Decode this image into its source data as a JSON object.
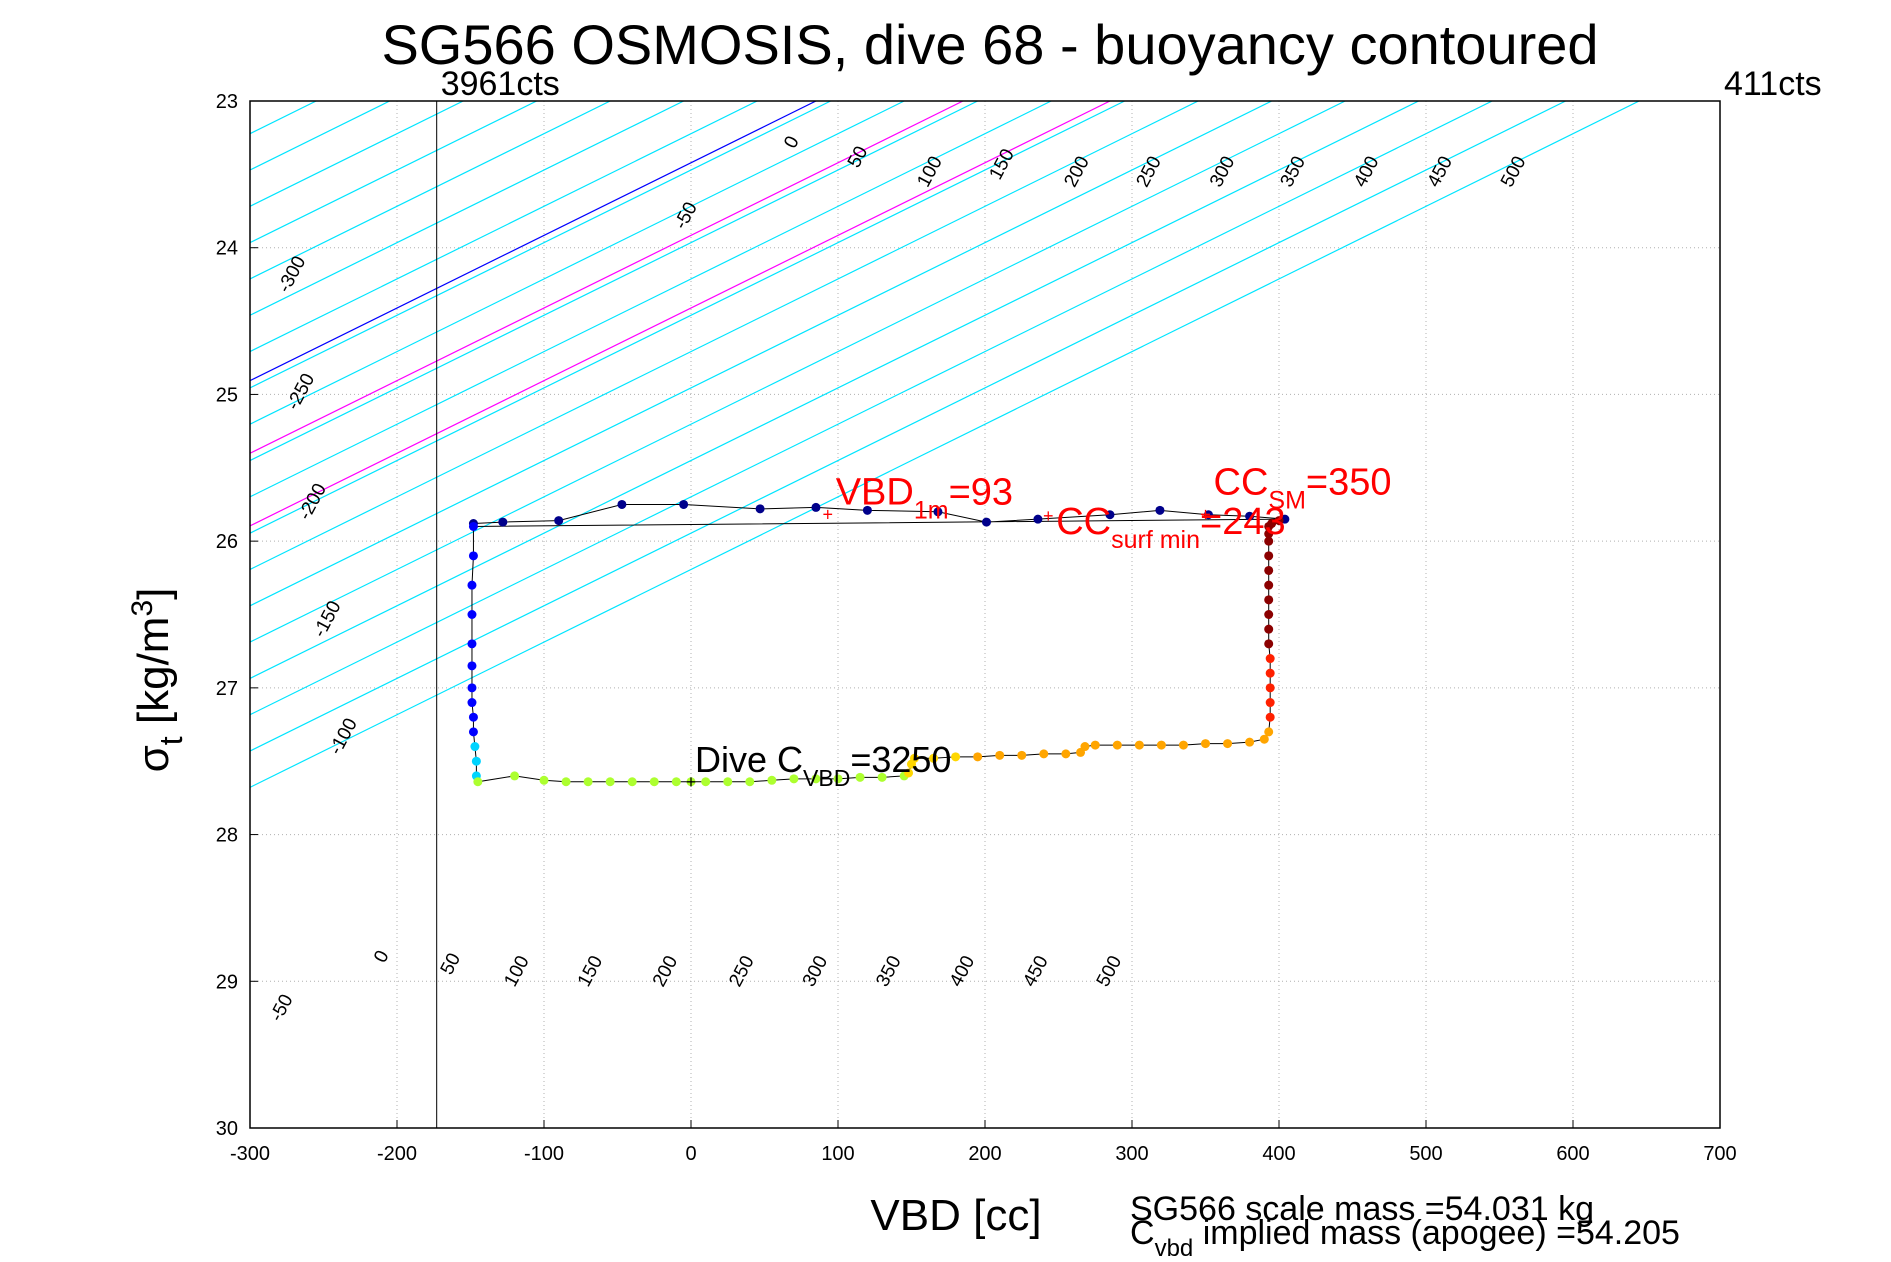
{
  "chart_data": {
    "type": "scatter",
    "title": "SG566 OSMOSIS, dive 68 - buoyancy contoured",
    "xlabel": "VBD [cc]",
    "ylabel_main": "σ",
    "ylabel_sub": "t",
    "ylabel_unit": "[kg/m",
    "ylabel_sup": "3",
    "ylabel_close": "]",
    "xlim": [
      -300,
      700
    ],
    "ylim": [
      23,
      30
    ],
    "y_reversed": true,
    "grid": true,
    "x_ticks": [
      "-300",
      "-200",
      "-100",
      "0",
      "100",
      "200",
      "300",
      "400",
      "500",
      "600",
      "700"
    ],
    "y_ticks": [
      "23",
      "24",
      "25",
      "26",
      "27",
      "28",
      "29",
      "30"
    ],
    "vlines": [
      {
        "x": -173,
        "label": "3961cts"
      },
      {
        "x": 700,
        "label": "411cts"
      }
    ],
    "contours": {
      "slope_cc_per_sigma": -202,
      "cyan_top": [
        {
          "value": -300,
          "x_at_23": -455,
          "label": "-300"
        },
        {
          "value": -250,
          "x_at_23": -405,
          "label": "-250"
        },
        {
          "value": -200,
          "x_at_23": -355,
          "label": "-200"
        },
        {
          "value": -150,
          "x_at_23": -305,
          "label": "-150"
        },
        {
          "value": -100,
          "x_at_23": -255,
          "label": "-100"
        },
        {
          "value": -50,
          "x_at_23": -205,
          "label": "-50"
        },
        {
          "value": 50,
          "x_at_23": -105,
          "label": "50"
        },
        {
          "value": 100,
          "x_at_23": -55,
          "label": "100"
        },
        {
          "value": 150,
          "x_at_23": -5,
          "label": "150"
        },
        {
          "value": 200,
          "x_at_23": 45,
          "label": "200"
        },
        {
          "value": 250,
          "x_at_23": 95,
          "label": "250"
        },
        {
          "value": 300,
          "x_at_23": 145,
          "label": "300"
        },
        {
          "value": 350,
          "x_at_23": 195,
          "label": "350"
        },
        {
          "value": 400,
          "x_at_23": 245,
          "label": "400"
        },
        {
          "value": 450,
          "x_at_23": 295,
          "label": "450"
        },
        {
          "value": 500,
          "x_at_23": 345,
          "label": "500"
        }
      ],
      "cyan_upper": [
        {
          "x_at_23": 395
        },
        {
          "x_at_23": 445
        },
        {
          "x_at_23": 495
        },
        {
          "x_at_23": 545
        },
        {
          "x_at_23": 595
        },
        {
          "x_at_23": 645
        }
      ],
      "blue_zero": {
        "x_at_23": 85,
        "label_top": "0",
        "label_bottom": "0",
        "label_minus50": "-50"
      },
      "magenta": [
        {
          "x_at_23": 185,
          "label_top": "100"
        },
        {
          "x_at_23": 285,
          "label_top": "200"
        }
      ],
      "top_labels": [
        {
          "text": "0",
          "x": 72,
          "y": 23.3
        },
        {
          "text": "50",
          "x": 117,
          "y": 23.4
        },
        {
          "text": "100",
          "x": 166,
          "y": 23.5
        },
        {
          "text": "150",
          "x": 215,
          "y": 23.45
        },
        {
          "text": "200",
          "x": 266,
          "y": 23.5
        },
        {
          "text": "250",
          "x": 315,
          "y": 23.5
        },
        {
          "text": "300",
          "x": 365,
          "y": 23.5
        },
        {
          "text": "350",
          "x": 413,
          "y": 23.5
        },
        {
          "text": "400",
          "x": 463,
          "y": 23.5
        },
        {
          "text": "450",
          "x": 513,
          "y": 23.5
        },
        {
          "text": "500",
          "x": 563,
          "y": 23.5
        },
        {
          "text": "-50",
          "x": 0,
          "y": 23.8
        }
      ],
      "left_labels": [
        {
          "text": "-300",
          "x": -268,
          "y": 24.2
        },
        {
          "text": "-250",
          "x": -262,
          "y": 25.0
        },
        {
          "text": "-200",
          "x": -254,
          "y": 25.75
        },
        {
          "text": "-150",
          "x": -244,
          "y": 26.55
        },
        {
          "text": "-100",
          "x": -233,
          "y": 27.35
        },
        {
          "text": "-50",
          "x": -275,
          "y": 29.2
        }
      ],
      "bottom_labels": [
        {
          "text": "0",
          "x": -207,
          "y": 28.85
        },
        {
          "text": "50",
          "x": -160,
          "y": 28.9
        },
        {
          "text": "100",
          "x": -115,
          "y": 28.95
        },
        {
          "text": "150",
          "x": -65,
          "y": 28.95
        },
        {
          "text": "200",
          "x": -14,
          "y": 28.95
        },
        {
          "text": "250",
          "x": 38,
          "y": 28.95
        },
        {
          "text": "300",
          "x": 88,
          "y": 28.95
        },
        {
          "text": "350",
          "x": 138,
          "y": 28.95
        },
        {
          "text": "400",
          "x": 188,
          "y": 28.95
        },
        {
          "text": "450",
          "x": 238,
          "y": 28.95
        },
        {
          "text": "500",
          "x": 288,
          "y": 28.95
        }
      ]
    },
    "series": [
      {
        "segment": "surface-top",
        "color": "#00008b",
        "x": [
          -148,
          -128,
          -90,
          -47,
          -5,
          47,
          85,
          120,
          168,
          201,
          236,
          285,
          319,
          352,
          380,
          404
        ],
        "y": [
          25.88,
          25.87,
          25.86,
          25.75,
          25.75,
          25.78,
          25.77,
          25.79,
          25.8,
          25.87,
          25.85,
          25.82,
          25.79,
          25.82,
          25.83,
          25.85
        ]
      },
      {
        "segment": "descent-left",
        "color": "#0000ff",
        "x": [
          -148,
          -148,
          -149,
          -149,
          -149,
          -149,
          -149,
          -149,
          -148,
          -148
        ],
        "y": [
          25.9,
          26.1,
          26.3,
          26.5,
          26.7,
          26.85,
          27.0,
          27.1,
          27.2,
          27.3
        ]
      },
      {
        "segment": "descent-left-cyan",
        "color": "#00d4ff",
        "x": [
          -147,
          -146,
          -146
        ],
        "y": [
          27.4,
          27.5,
          27.6
        ]
      },
      {
        "segment": "bottom-green",
        "color": "#adff2f",
        "x": [
          -145,
          -120,
          -100,
          -85,
          -70,
          -55,
          -40,
          -25,
          -10,
          0,
          10,
          25,
          40,
          55,
          70,
          85,
          100,
          115,
          130,
          145
        ],
        "y": [
          27.64,
          27.6,
          27.63,
          27.64,
          27.64,
          27.64,
          27.64,
          27.64,
          27.64,
          27.64,
          27.64,
          27.64,
          27.64,
          27.63,
          27.62,
          27.62,
          27.62,
          27.61,
          27.61,
          27.6
        ]
      },
      {
        "segment": "bottom-yellow",
        "color": "#ffd700",
        "x": [
          148,
          150,
          152,
          165,
          180
        ],
        "y": [
          27.58,
          27.52,
          27.48,
          27.48,
          27.47
        ]
      },
      {
        "segment": "ascent-orange",
        "color": "#ffa500",
        "x": [
          195,
          210,
          225,
          240,
          255,
          265,
          268,
          275,
          290,
          305,
          320,
          335,
          350,
          365,
          380,
          390,
          393
        ],
        "y": [
          27.47,
          27.46,
          27.46,
          27.45,
          27.45,
          27.44,
          27.4,
          27.39,
          27.39,
          27.39,
          27.39,
          27.39,
          27.38,
          27.38,
          27.37,
          27.35,
          27.3
        ]
      },
      {
        "segment": "ascent-red",
        "color": "#ff2000",
        "x": [
          394,
          394,
          394,
          394,
          394
        ],
        "y": [
          27.2,
          27.1,
          27.0,
          26.9,
          26.8
        ]
      },
      {
        "segment": "ascent-darkred",
        "color": "#8b0000",
        "x": [
          393,
          393,
          393,
          393,
          393,
          393,
          393,
          393,
          393,
          393,
          395,
          400
        ],
        "y": [
          26.7,
          26.6,
          26.5,
          26.4,
          26.3,
          26.2,
          26.1,
          26.0,
          25.95,
          25.9,
          25.88,
          25.86
        ]
      }
    ],
    "annotations": [
      {
        "id": "vbd1m",
        "main": "VBD",
        "sub": "1m",
        "tail": "=93",
        "color": "#ff0000",
        "x": 93,
        "y": 25.82,
        "marker_x": 93,
        "marker_y": 25.82
      },
      {
        "id": "ccsurf",
        "main": "CC",
        "sub": "surf min",
        "tail": "=243",
        "color": "#ff0000",
        "x": 243,
        "y": 25.83,
        "marker_x": 243,
        "marker_y": 25.83
      },
      {
        "id": "ccsm",
        "main": "CC",
        "sub": "SM",
        "tail": "=350",
        "color": "#ff0000",
        "x": 350,
        "y": 25.82,
        "marker_x": 350,
        "marker_y": 25.82
      },
      {
        "id": "divec",
        "main": "Dive C",
        "sub": "VBD",
        "tail": "=3250",
        "color": "#000000",
        "x": 0,
        "y": 27.64,
        "marker_x": 0,
        "marker_y": 27.64
      }
    ],
    "footer_lines": [
      {
        "main": "SG566 scale mass =54.031 kg"
      },
      {
        "main": "C",
        "sub": "vbd",
        "tail": " implied mass (apogee) =54.205"
      }
    ]
  }
}
